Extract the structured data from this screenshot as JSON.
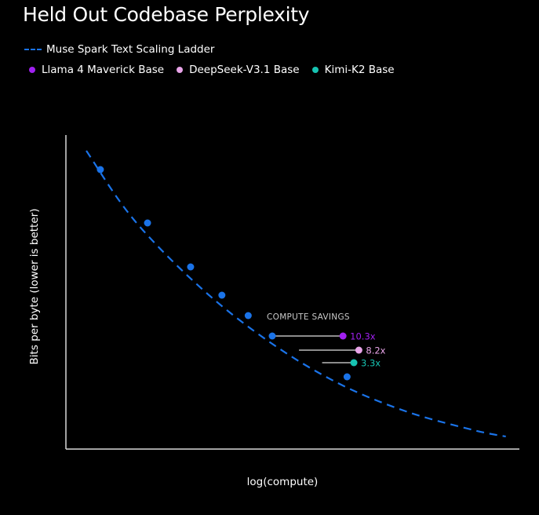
{
  "chart_data": {
    "type": "scatter",
    "title": "Held Out Codebase Perplexity",
    "xlabel": "log(compute)",
    "ylabel": "Bits per byte (lower is better)",
    "xlim": [
      0,
      100
    ],
    "ylim": [
      0,
      100
    ],
    "ladder": {
      "name": "Muse Spark Text Scaling Ladder",
      "color": "#1a73e8",
      "curve": [
        [
          4.5,
          95
        ],
        [
          15,
          73
        ],
        [
          30,
          51
        ],
        [
          45,
          34
        ],
        [
          60,
          21
        ],
        [
          75,
          12
        ],
        [
          90,
          6
        ],
        [
          97,
          4
        ]
      ],
      "points": [
        [
          7.6,
          89
        ],
        [
          18,
          72
        ],
        [
          27.5,
          58
        ],
        [
          34.4,
          49
        ],
        [
          40.2,
          42.5
        ],
        [
          45.5,
          36
        ],
        [
          62,
          23
        ]
      ]
    },
    "baselines": [
      {
        "name": "Llama 4 Maverick Base",
        "color": "#a020f0",
        "x": 61.1,
        "y": 36,
        "from_x": 45.5,
        "savings": "10.3x"
      },
      {
        "name": "DeepSeek-V3.1 Base",
        "color": "#e8a4e8",
        "x": 64.6,
        "y": 31.5,
        "from_x": 51.4,
        "savings": "8.2x"
      },
      {
        "name": "Kimi-K2 Base",
        "color": "#17c3b2",
        "x": 63.5,
        "y": 27.5,
        "from_x": 56.5,
        "savings": "3.3x"
      }
    ],
    "annotation": "COMPUTE SAVINGS"
  }
}
